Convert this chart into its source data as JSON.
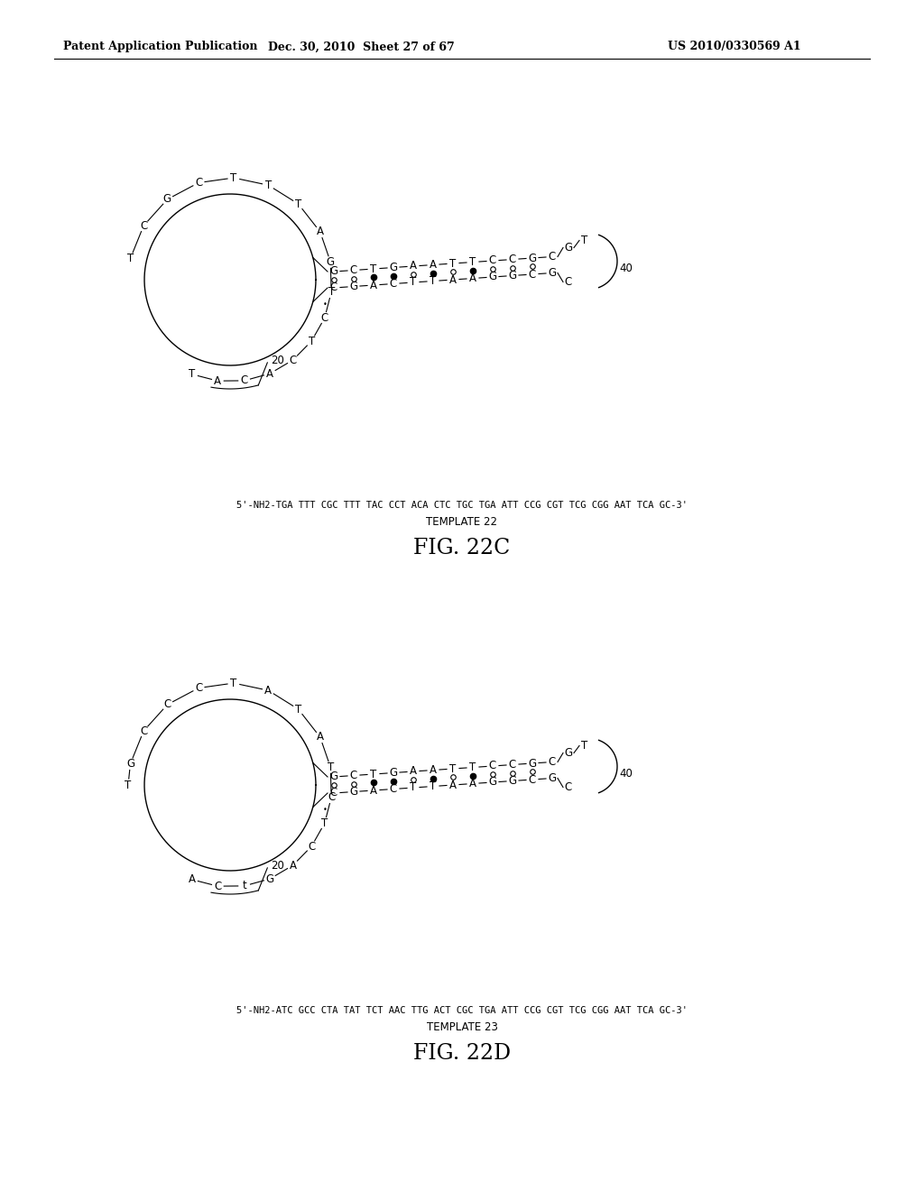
{
  "header_left": "Patent Application Publication",
  "header_center": "Dec. 30, 2010  Sheet 27 of 67",
  "header_right": "US 2010/0330569 A1",
  "fig22c": {
    "label": "FIG. 22C",
    "template_seq": "5'-NH2-TGA TTT CGC TTT TAC CCT ACA CTC TGC TGA ATT CCG CGT TCG CGG AAT TCA GC-3'",
    "template_name": "TEMPLATE 22",
    "circle_nucs": [
      [
        112,
        "T"
      ],
      [
        97,
        "A"
      ],
      [
        82,
        "C"
      ],
      [
        67,
        "A"
      ],
      [
        52,
        "C"
      ],
      [
        37,
        "T"
      ],
      [
        22,
        "C"
      ],
      [
        7,
        "T"
      ],
      [
        -10,
        "G"
      ],
      [
        -28,
        "A"
      ],
      [
        -48,
        "T"
      ],
      [
        -68,
        "T"
      ],
      [
        -88,
        "T"
      ],
      [
        -108,
        "C"
      ],
      [
        -128,
        "G"
      ],
      [
        -148,
        "C"
      ],
      [
        -168,
        "T"
      ]
    ],
    "duplex_upper": [
      "G",
      "C",
      "T",
      "G",
      "A",
      "A",
      "T",
      "T",
      "C",
      "C",
      "G",
      "C"
    ],
    "duplex_lower": [
      "C",
      "G",
      "A",
      "C",
      "T",
      "T",
      "A",
      "A",
      "G",
      "G",
      "C",
      "G"
    ],
    "dots_filled": [
      2,
      3,
      5,
      7
    ],
    "dots_open": [
      0,
      1,
      4,
      6,
      8,
      9,
      10
    ],
    "hairpin_upper": [
      "G",
      "T"
    ],
    "hairpin_lower": [
      "C"
    ]
  },
  "fig22d": {
    "label": "FIG. 22D",
    "template_seq": "5'-NH2-ATC GCC CTA TAT TCT AAC TTG ACT CGC TGA ATT CCG CGT TCG CGG AAT TCA GC-3'",
    "template_name": "TEMPLATE 23",
    "circle_nucs": [
      [
        112,
        "A"
      ],
      [
        97,
        "C"
      ],
      [
        82,
        "t"
      ],
      [
        67,
        "G"
      ],
      [
        52,
        "A"
      ],
      [
        37,
        "C"
      ],
      [
        22,
        "T"
      ],
      [
        7,
        "C"
      ],
      [
        -10,
        "T"
      ],
      [
        -28,
        "A"
      ],
      [
        -48,
        "T"
      ],
      [
        -68,
        "A"
      ],
      [
        -88,
        "T"
      ],
      [
        -108,
        "C"
      ],
      [
        -128,
        "C"
      ],
      [
        -148,
        "C"
      ],
      [
        -168,
        "G"
      ],
      [
        -180,
        "T"
      ]
    ],
    "duplex_upper": [
      "G",
      "C",
      "T",
      "G",
      "A",
      "A",
      "T",
      "T",
      "C",
      "C",
      "G",
      "C"
    ],
    "duplex_lower": [
      "C",
      "G",
      "A",
      "C",
      "T",
      "T",
      "A",
      "A",
      "G",
      "G",
      "C",
      "G"
    ],
    "dots_filled": [
      2,
      3,
      5,
      7
    ],
    "dots_open": [
      0,
      1,
      4,
      6,
      8,
      9,
      10
    ],
    "hairpin_upper": [
      "G",
      "T"
    ],
    "hairpin_lower": [
      "C"
    ]
  },
  "bg": "#ffffff"
}
